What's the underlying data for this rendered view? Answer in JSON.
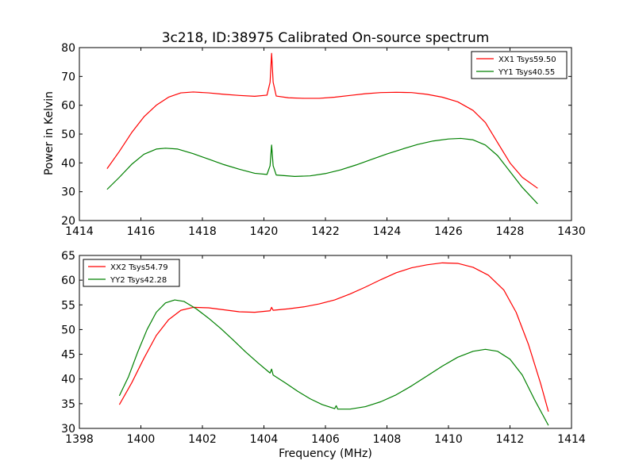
{
  "figure": {
    "title": "3c218, ID:38975 Calibrated On-source spectrum",
    "ylabel": "Power in Kelvin",
    "xlabel": "Frequency (MHz)"
  },
  "chart_data": [
    {
      "type": "line",
      "xlim": [
        1414,
        1430
      ],
      "ylim": [
        20,
        80
      ],
      "xticks": [
        1414,
        1416,
        1418,
        1420,
        1422,
        1424,
        1426,
        1428,
        1430
      ],
      "yticks": [
        20,
        30,
        40,
        50,
        60,
        70,
        80
      ],
      "legend_position": "top-right",
      "grid": false,
      "series": [
        {
          "name": "XX1 Tsys59.50",
          "color": "#ff0000",
          "points": [
            [
              1414.9,
              38
            ],
            [
              1415.3,
              44
            ],
            [
              1415.7,
              50.5
            ],
            [
              1416.1,
              56
            ],
            [
              1416.5,
              60
            ],
            [
              1416.9,
              62.8
            ],
            [
              1417.3,
              64.3
            ],
            [
              1417.7,
              64.6
            ],
            [
              1418.2,
              64.3
            ],
            [
              1418.7,
              63.8
            ],
            [
              1419.2,
              63.4
            ],
            [
              1419.7,
              63.1
            ],
            [
              1420.1,
              63.5
            ],
            [
              1420.2,
              68
            ],
            [
              1420.25,
              78
            ],
            [
              1420.3,
              68
            ],
            [
              1420.4,
              63.2
            ],
            [
              1420.8,
              62.6
            ],
            [
              1421.3,
              62.4
            ],
            [
              1421.8,
              62.4
            ],
            [
              1422.3,
              62.8
            ],
            [
              1422.8,
              63.4
            ],
            [
              1423.3,
              64
            ],
            [
              1423.8,
              64.4
            ],
            [
              1424.3,
              64.5
            ],
            [
              1424.8,
              64.4
            ],
            [
              1425.3,
              63.8
            ],
            [
              1425.8,
              62.8
            ],
            [
              1426.3,
              61.2
            ],
            [
              1426.8,
              58.2
            ],
            [
              1427.2,
              54
            ],
            [
              1427.6,
              47
            ],
            [
              1428,
              40
            ],
            [
              1428.4,
              35
            ],
            [
              1428.9,
              31.2
            ]
          ]
        },
        {
          "name": "YY1 Tsys40.55",
          "color": "#008000",
          "points": [
            [
              1414.9,
              30.8
            ],
            [
              1415.3,
              35
            ],
            [
              1415.7,
              39.5
            ],
            [
              1416.1,
              43
            ],
            [
              1416.5,
              44.8
            ],
            [
              1416.8,
              45.1
            ],
            [
              1417.2,
              44.8
            ],
            [
              1417.7,
              43.2
            ],
            [
              1418.2,
              41.3
            ],
            [
              1418.7,
              39.4
            ],
            [
              1419.2,
              37.8
            ],
            [
              1419.7,
              36.4
            ],
            [
              1420.1,
              36
            ],
            [
              1420.2,
              39
            ],
            [
              1420.25,
              46.2
            ],
            [
              1420.3,
              39
            ],
            [
              1420.4,
              35.8
            ],
            [
              1421,
              35.3
            ],
            [
              1421.5,
              35.5
            ],
            [
              1422,
              36.3
            ],
            [
              1422.5,
              37.6
            ],
            [
              1423,
              39.3
            ],
            [
              1423.5,
              41.2
            ],
            [
              1424,
              43.1
            ],
            [
              1424.5,
              44.8
            ],
            [
              1425,
              46.4
            ],
            [
              1425.5,
              47.6
            ],
            [
              1426,
              48.3
            ],
            [
              1426.4,
              48.5
            ],
            [
              1426.8,
              48
            ],
            [
              1427.2,
              46.2
            ],
            [
              1427.6,
              42.5
            ],
            [
              1428,
              37
            ],
            [
              1428.4,
              31.5
            ],
            [
              1428.9,
              25.8
            ]
          ]
        }
      ]
    },
    {
      "type": "line",
      "xlim": [
        1398,
        1414
      ],
      "ylim": [
        30,
        65
      ],
      "xticks": [
        1398,
        1400,
        1402,
        1404,
        1406,
        1408,
        1410,
        1412,
        1414
      ],
      "yticks": [
        30,
        35,
        40,
        45,
        50,
        55,
        60,
        65
      ],
      "legend_position": "top-left",
      "grid": false,
      "series": [
        {
          "name": "XX2 Tsys54.79",
          "color": "#ff0000",
          "points": [
            [
              1399.3,
              34.8
            ],
            [
              1399.7,
              39.2
            ],
            [
              1400.1,
              44.2
            ],
            [
              1400.5,
              48.8
            ],
            [
              1400.9,
              52
            ],
            [
              1401.3,
              53.9
            ],
            [
              1401.7,
              54.5
            ],
            [
              1402.2,
              54.4
            ],
            [
              1402.7,
              54
            ],
            [
              1403.2,
              53.6
            ],
            [
              1403.7,
              53.5
            ],
            [
              1404.2,
              53.8
            ],
            [
              1404.25,
              54.5
            ],
            [
              1404.3,
              53.9
            ],
            [
              1404.8,
              54.2
            ],
            [
              1405.3,
              54.6
            ],
            [
              1405.8,
              55.2
            ],
            [
              1406.3,
              56
            ],
            [
              1406.8,
              57.2
            ],
            [
              1407.3,
              58.6
            ],
            [
              1407.8,
              60.1
            ],
            [
              1408.3,
              61.5
            ],
            [
              1408.8,
              62.5
            ],
            [
              1409.3,
              63.1
            ],
            [
              1409.8,
              63.5
            ],
            [
              1410.3,
              63.4
            ],
            [
              1410.8,
              62.6
            ],
            [
              1411.3,
              61
            ],
            [
              1411.8,
              58
            ],
            [
              1412.2,
              53.5
            ],
            [
              1412.6,
              47
            ],
            [
              1413,
              39
            ],
            [
              1413.25,
              33.4
            ]
          ]
        },
        {
          "name": "YY2 Tsys42.28",
          "color": "#008000",
          "points": [
            [
              1399.3,
              36.6
            ],
            [
              1399.6,
              40.5
            ],
            [
              1399.9,
              45.5
            ],
            [
              1400.2,
              50
            ],
            [
              1400.5,
              53.5
            ],
            [
              1400.8,
              55.4
            ],
            [
              1401.1,
              56
            ],
            [
              1401.4,
              55.7
            ],
            [
              1401.8,
              54.2
            ],
            [
              1402.2,
              52.3
            ],
            [
              1402.6,
              50.2
            ],
            [
              1403,
              47.9
            ],
            [
              1403.4,
              45.5
            ],
            [
              1403.8,
              43.3
            ],
            [
              1404.2,
              41.2
            ],
            [
              1404.25,
              42
            ],
            [
              1404.3,
              40.8
            ],
            [
              1404.7,
              39.2
            ],
            [
              1405.1,
              37.5
            ],
            [
              1405.5,
              36
            ],
            [
              1405.9,
              34.8
            ],
            [
              1406.3,
              34
            ],
            [
              1406.35,
              34.6
            ],
            [
              1406.4,
              33.9
            ],
            [
              1406.8,
              33.9
            ],
            [
              1407.3,
              34.4
            ],
            [
              1407.8,
              35.4
            ],
            [
              1408.3,
              36.8
            ],
            [
              1408.8,
              38.6
            ],
            [
              1409.3,
              40.6
            ],
            [
              1409.8,
              42.6
            ],
            [
              1410.3,
              44.4
            ],
            [
              1410.8,
              45.6
            ],
            [
              1411.2,
              46
            ],
            [
              1411.6,
              45.6
            ],
            [
              1412,
              44
            ],
            [
              1412.4,
              40.8
            ],
            [
              1412.8,
              35.8
            ],
            [
              1413.25,
              30.6
            ]
          ]
        }
      ]
    }
  ]
}
